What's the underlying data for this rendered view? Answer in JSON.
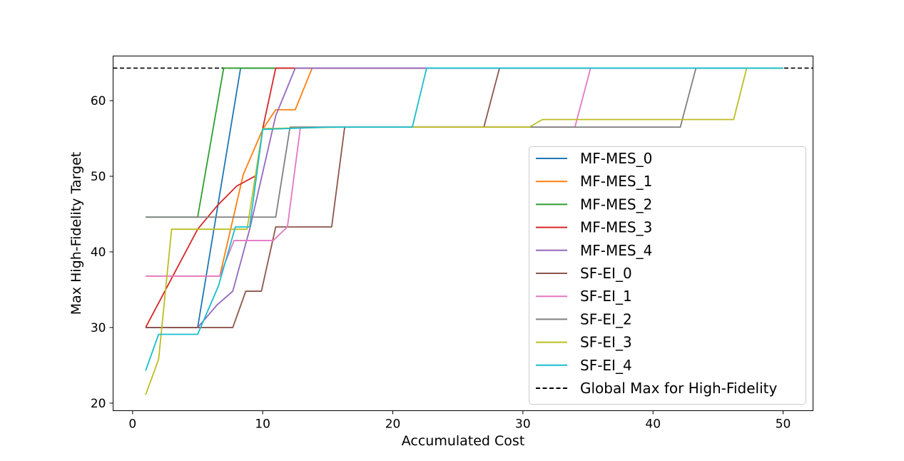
{
  "chart_data": {
    "type": "line",
    "xlabel": "Accumulated Cost",
    "ylabel": "Max High-Fidelity Target",
    "xlim": [
      -1.5,
      52.3
    ],
    "ylim": [
      19.0,
      65.9
    ],
    "xticks": [
      "0",
      "10",
      "20",
      "30",
      "40",
      "50"
    ],
    "xtick_values": [
      0,
      10,
      20,
      30,
      40,
      50
    ],
    "yticks": [
      "20",
      "30",
      "40",
      "50",
      "60"
    ],
    "ytick_values": [
      20,
      30,
      40,
      50,
      60
    ],
    "grid": false,
    "legend_position": "center-right",
    "series": [
      {
        "name": "MF-MES_0",
        "color": "#1f77b4",
        "points": [
          [
            1,
            30
          ],
          [
            5,
            30
          ],
          [
            8.3,
            64.3
          ],
          [
            50,
            64.3
          ]
        ]
      },
      {
        "name": "MF-MES_1",
        "color": "#ff7f0e",
        "points": [
          [
            1,
            36.8
          ],
          [
            6.7,
            36.8
          ],
          [
            8.5,
            50.2
          ],
          [
            10,
            56.2
          ],
          [
            11,
            58.8
          ],
          [
            12.5,
            58.8
          ],
          [
            13.8,
            64.3
          ],
          [
            50,
            64.3
          ]
        ]
      },
      {
        "name": "MF-MES_2",
        "color": "#2ca02c",
        "points": [
          [
            1,
            44.6
          ],
          [
            5,
            44.6
          ],
          [
            7,
            64.3
          ],
          [
            50,
            64.3
          ]
        ]
      },
      {
        "name": "MF-MES_3",
        "color": "#d62728",
        "points": [
          [
            1,
            30
          ],
          [
            5,
            43
          ],
          [
            6.5,
            46.1
          ],
          [
            8,
            48.7
          ],
          [
            9.5,
            50.1
          ],
          [
            10,
            56.3
          ],
          [
            11,
            64.3
          ],
          [
            50,
            64.3
          ]
        ]
      },
      {
        "name": "MF-MES_4",
        "color": "#9467bd",
        "points": [
          [
            1,
            30
          ],
          [
            5,
            30
          ],
          [
            6.5,
            33
          ],
          [
            7.7,
            34.8
          ],
          [
            9,
            43
          ],
          [
            11,
            58
          ],
          [
            12.5,
            64.3
          ],
          [
            50,
            64.3
          ]
        ]
      },
      {
        "name": "SF-EI_0",
        "color": "#8c564b",
        "points": [
          [
            1,
            30
          ],
          [
            7.7,
            30
          ],
          [
            8.7,
            34.8
          ],
          [
            9.9,
            34.8
          ],
          [
            11,
            43.3
          ],
          [
            15.3,
            43.3
          ],
          [
            16.3,
            56.5
          ],
          [
            27,
            56.5
          ],
          [
            28.2,
            64.3
          ],
          [
            50,
            64.3
          ]
        ]
      },
      {
        "name": "SF-EI_1",
        "color": "#e377c2",
        "points": [
          [
            1,
            36.8
          ],
          [
            6.7,
            36.8
          ],
          [
            7.8,
            41.5
          ],
          [
            10.8,
            41.5
          ],
          [
            11.9,
            43.3
          ],
          [
            12.9,
            56.5
          ],
          [
            34,
            56.5
          ],
          [
            35.2,
            64.3
          ],
          [
            50,
            64.3
          ]
        ]
      },
      {
        "name": "SF-EI_2",
        "color": "#7f7f7f",
        "points": [
          [
            1,
            44.6
          ],
          [
            11,
            44.6
          ],
          [
            12.1,
            56.5
          ],
          [
            42.1,
            56.5
          ],
          [
            43.3,
            64.3
          ],
          [
            50,
            64.3
          ]
        ]
      },
      {
        "name": "SF-EI_3",
        "color": "#bcbd22",
        "points": [
          [
            1,
            21.1
          ],
          [
            2,
            25.8
          ],
          [
            3,
            43
          ],
          [
            8.8,
            43
          ],
          [
            10,
            56.3
          ],
          [
            16,
            56.5
          ],
          [
            30.5,
            56.5
          ],
          [
            31.5,
            57.5
          ],
          [
            46.2,
            57.5
          ],
          [
            47.2,
            64.3
          ],
          [
            50,
            64.3
          ]
        ]
      },
      {
        "name": "SF-EI_4",
        "color": "#17becf",
        "points": [
          [
            1,
            24.3
          ],
          [
            2,
            29.1
          ],
          [
            5,
            29.1
          ],
          [
            6.6,
            35.5
          ],
          [
            7.9,
            43.3
          ],
          [
            9,
            43.3
          ],
          [
            10,
            56.2
          ],
          [
            15,
            56.5
          ],
          [
            21.5,
            56.5
          ],
          [
            22.6,
            64.3
          ],
          [
            50,
            64.3
          ]
        ]
      }
    ],
    "reference_line": {
      "name": "Global Max for High-Fidelity",
      "value": 64.3,
      "color": "#000000",
      "style": "dashed"
    }
  }
}
